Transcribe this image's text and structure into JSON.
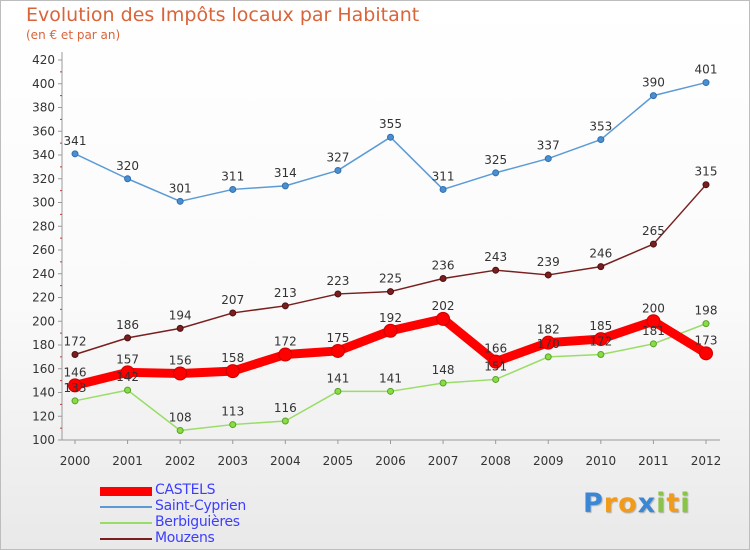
{
  "chart_data": {
    "type": "line",
    "title": "Evolution des Impôts locaux par Habitant",
    "subtitle": "(en € et par an)",
    "x": [
      "2000",
      "2001",
      "2002",
      "2003",
      "2004",
      "2005",
      "2006",
      "2007",
      "2008",
      "2009",
      "2010",
      "2011",
      "2012"
    ],
    "ylim": [
      100,
      420
    ],
    "yticks": [
      100,
      120,
      140,
      160,
      180,
      200,
      220,
      240,
      260,
      280,
      300,
      320,
      340,
      360,
      380,
      400,
      420
    ],
    "grid": false,
    "legend_position": "bottom-left",
    "series": [
      {
        "name": "CASTELS",
        "color": "#ff0000",
        "values": [
          146,
          157,
          156,
          158,
          172,
          175,
          192,
          202,
          166,
          182,
          185,
          200,
          173
        ]
      },
      {
        "name": "Saint-Cyprien",
        "color": "#5b9bd5",
        "values": [
          341,
          320,
          301,
          311,
          314,
          327,
          355,
          311,
          325,
          337,
          353,
          390,
          401
        ]
      },
      {
        "name": "Berbiguières",
        "color": "#99dd66",
        "values": [
          133,
          142,
          108,
          113,
          116,
          141,
          141,
          148,
          151,
          170,
          172,
          181,
          198
        ]
      },
      {
        "name": "Mouzens",
        "color": "#7a1f1f",
        "values": [
          172,
          186,
          194,
          207,
          213,
          223,
          225,
          236,
          243,
          239,
          246,
          265,
          315
        ]
      }
    ]
  },
  "logo": {
    "letters": [
      "P",
      "r",
      "o",
      "x",
      "i",
      "t",
      "i"
    ],
    "colors": [
      "#3a87d6",
      "#f29b1a",
      "#f29b1a",
      "#3a87d6",
      "#8bc34a",
      "#f29b1a",
      "#8bc34a"
    ]
  }
}
